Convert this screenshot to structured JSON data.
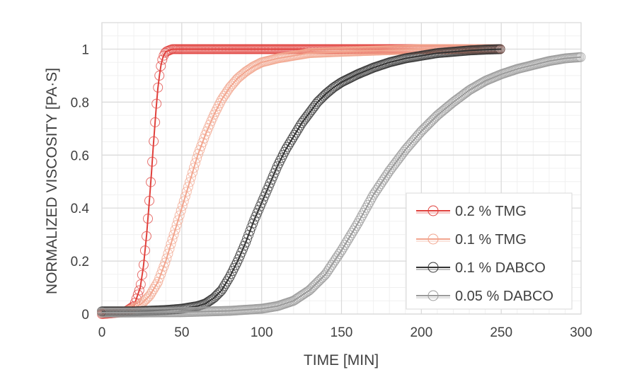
{
  "chart_data": {
    "type": "scatter",
    "title": "",
    "xlabel": "TIME [MIN]",
    "ylabel": "NORMALIZED VISCOSITY [PA·S]",
    "xlim": [
      0,
      300
    ],
    "ylim": [
      0,
      1.1
    ],
    "x_ticks": [
      "0",
      "50",
      "100",
      "150",
      "200",
      "250",
      "300"
    ],
    "y_ticks": [
      "0",
      "0.2",
      "0.4",
      "0.6",
      "0.8",
      "1"
    ],
    "grid": true,
    "legend_position": "bottom-right",
    "series": [
      {
        "name": "0.2 % TMG",
        "color": "#e0403c",
        "x": [
          0,
          10,
          15,
          20,
          24,
          26,
          28,
          30,
          31,
          32,
          33,
          34,
          35,
          36,
          37,
          38,
          39,
          40,
          42,
          44,
          46,
          50,
          60,
          80,
          100,
          150,
          200,
          250
        ],
        "y": [
          0.0,
          0.005,
          0.01,
          0.03,
          0.1,
          0.18,
          0.3,
          0.45,
          0.53,
          0.62,
          0.7,
          0.78,
          0.85,
          0.9,
          0.94,
          0.965,
          0.98,
          0.99,
          0.995,
          1.0,
          1.0,
          1.0,
          1.0,
          1.0,
          1.0,
          1.0,
          1.0,
          1.0
        ]
      },
      {
        "name": "0.1 % TMG",
        "color": "#f2a58e",
        "x": [
          0,
          15,
          20,
          25,
          30,
          35,
          40,
          45,
          50,
          55,
          60,
          65,
          70,
          75,
          80,
          85,
          90,
          95,
          100,
          110,
          120,
          130,
          150,
          175,
          200,
          225,
          250
        ],
        "y": [
          0.005,
          0.01,
          0.02,
          0.04,
          0.07,
          0.12,
          0.2,
          0.3,
          0.4,
          0.5,
          0.6,
          0.68,
          0.75,
          0.81,
          0.855,
          0.89,
          0.915,
          0.935,
          0.95,
          0.965,
          0.975,
          0.985,
          0.99,
          0.995,
          1.0,
          1.0,
          1.0
        ]
      },
      {
        "name": "0.1 % DABCO",
        "color": "#333333",
        "x": [
          0,
          20,
          40,
          50,
          60,
          65,
          70,
          75,
          80,
          85,
          90,
          95,
          100,
          105,
          110,
          115,
          120,
          125,
          130,
          135,
          140,
          145,
          150,
          160,
          170,
          180,
          190,
          200,
          210,
          220,
          230,
          240,
          250
        ],
        "y": [
          0.01,
          0.01,
          0.015,
          0.02,
          0.03,
          0.04,
          0.06,
          0.09,
          0.14,
          0.2,
          0.27,
          0.35,
          0.42,
          0.49,
          0.56,
          0.62,
          0.67,
          0.72,
          0.76,
          0.8,
          0.83,
          0.855,
          0.875,
          0.905,
          0.93,
          0.95,
          0.965,
          0.975,
          0.985,
          0.99,
          0.995,
          0.998,
          1.0
        ]
      },
      {
        "name": "0.05 % DABCO",
        "color": "#9a9a9a",
        "x": [
          0,
          50,
          80,
          100,
          110,
          120,
          130,
          140,
          150,
          160,
          170,
          180,
          190,
          200,
          210,
          220,
          230,
          240,
          250,
          260,
          270,
          280,
          290,
          300
        ],
        "y": [
          0.005,
          0.007,
          0.012,
          0.02,
          0.03,
          0.05,
          0.09,
          0.15,
          0.24,
          0.34,
          0.45,
          0.54,
          0.62,
          0.69,
          0.75,
          0.8,
          0.845,
          0.88,
          0.905,
          0.925,
          0.94,
          0.955,
          0.965,
          0.97
        ]
      }
    ]
  }
}
